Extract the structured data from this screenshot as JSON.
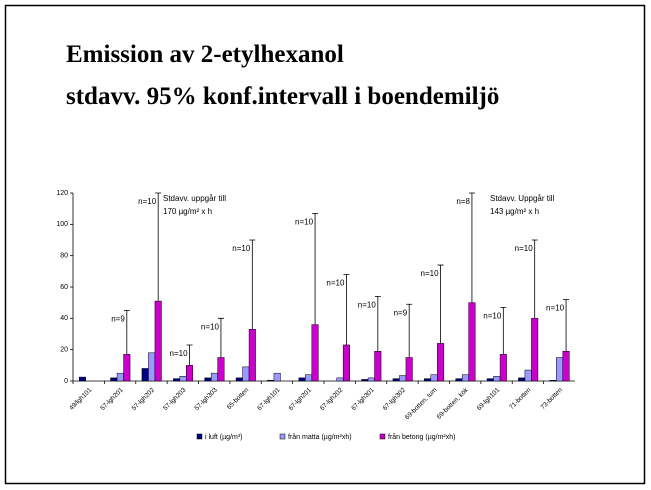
{
  "chart_data": {
    "type": "bar",
    "title_lines": [
      "Emission av 2-etylhexanol",
      "stdavv. 95% konf.intervall i boendemiljö"
    ],
    "categories": [
      "49/lgh101",
      "57-lgh201",
      "57-lgh202",
      "57-lgh203",
      "57-lgh303",
      "65-botten",
      "67-lgh101",
      "67-lgh201",
      "67-lgh202",
      "67-lgh301",
      "67-lgh302",
      "69-botten, tum",
      "69-botten, kök",
      "69-lgh101",
      "71-botten",
      "73-botten"
    ],
    "series": [
      {
        "name": "i luft (µg/m³)",
        "color": "#000080",
        "values": [
          2.5,
          2,
          8,
          1.5,
          2,
          2,
          0.5,
          2,
          0,
          1,
          1.5,
          1.5,
          1.5,
          1.5,
          2,
          0.5
        ]
      },
      {
        "name": "från matta (µg/m²xh)",
        "color": "#9999ff",
        "values": [
          0,
          5,
          18,
          3,
          5,
          9,
          5,
          4,
          2,
          2,
          3.5,
          4,
          4,
          3,
          7,
          15
        ]
      },
      {
        "name": "från betong  (µg/m²xh)",
        "color": "#cc00cc",
        "values": [
          0,
          17,
          51,
          10,
          15,
          33,
          0,
          36,
          23,
          19,
          15,
          24,
          50,
          17,
          40,
          19
        ],
        "errors": [
          null,
          28,
          69,
          13,
          25,
          57,
          null,
          71,
          45,
          35,
          34,
          50,
          70,
          30,
          50,
          33
        ]
      }
    ],
    "n_labels": [
      null,
      "n=9",
      "n=10",
      "n=10",
      "n=10",
      "n=10",
      null,
      "n=10",
      "n=10",
      "n=10",
      "n=9",
      "n=10",
      "n=8",
      "n=10",
      "n=10",
      "n=10"
    ],
    "annotations": [
      {
        "lines": [
          "Stdavv. uppgår till",
          "170 µg/m² x h"
        ]
      },
      {
        "lines": [
          "Stdavv. Uppgår till",
          "143 µg/m² x h"
        ]
      }
    ],
    "ylim": [
      0,
      120
    ],
    "yticks": [
      0,
      20,
      40,
      60,
      80,
      100,
      120
    ]
  }
}
